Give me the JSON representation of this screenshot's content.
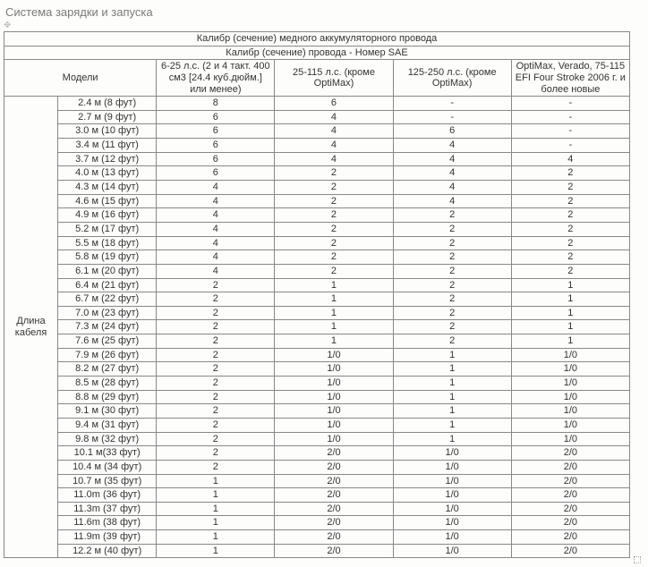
{
  "page_title": "Система зарядки и запуска",
  "table": {
    "header1": "Калибр (сечение) медного аккумуляторного  провода",
    "header2": "Калибр (сечение) провода - Номер SAE",
    "models_label": "Модели",
    "col_headers": [
      "6-25 л.с. (2 и 4 такт. 400 см3 [24.4 куб.дюйм.] или менее)",
      "25-115 л.с. (кроме OptiMax)",
      "125-250 л.с. (кроме OptiMax)",
      "OptiMax, Verado, 75-115 EFI Four Stroke 2006 г. и более новые"
    ],
    "row_group_label": "Длина кабеля",
    "rows": [
      {
        "len": "2.4 м (8 фут)",
        "v": [
          "8",
          "6",
          "-",
          "-"
        ]
      },
      {
        "len": "2.7 м (9 фут)",
        "v": [
          "6",
          "4",
          "-",
          "-"
        ]
      },
      {
        "len": "3.0 м (10 фут)",
        "v": [
          "6",
          "4",
          "6",
          "-"
        ]
      },
      {
        "len": "3.4 м (11 фут)",
        "v": [
          "6",
          "4",
          "4",
          "-"
        ]
      },
      {
        "len": "3.7 м (12 фут)",
        "v": [
          "6",
          "4",
          "4",
          "4"
        ]
      },
      {
        "len": "4.0 м (13 фут)",
        "v": [
          "6",
          "2",
          "4",
          "2"
        ]
      },
      {
        "len": "4.3 м (14 фут)",
        "v": [
          "4",
          "2",
          "4",
          "2"
        ]
      },
      {
        "len": "4.6 м (15 фут)",
        "v": [
          "4",
          "2",
          "4",
          "2"
        ]
      },
      {
        "len": "4.9 м (16 фут)",
        "v": [
          "4",
          "2",
          "2",
          "2"
        ]
      },
      {
        "len": "5.2 м (17 фут)",
        "v": [
          "4",
          "2",
          "2",
          "2"
        ]
      },
      {
        "len": "5.5 м (18 фут)",
        "v": [
          "4",
          "2",
          "2",
          "2"
        ]
      },
      {
        "len": "5.8 м (19 фут)",
        "v": [
          "4",
          "2",
          "2",
          "2"
        ]
      },
      {
        "len": "6.1 м (20 фут)",
        "v": [
          "4",
          "2",
          "2",
          "2"
        ]
      },
      {
        "len": "6.4 м (21 фут)",
        "v": [
          "2",
          "1",
          "2",
          "1"
        ]
      },
      {
        "len": "6.7 м (22 фут)",
        "v": [
          "2",
          "1",
          "2",
          "1"
        ]
      },
      {
        "len": "7.0 м (23 фут)",
        "v": [
          "2",
          "1",
          "2",
          "1"
        ]
      },
      {
        "len": "7.3 м (24 фут)",
        "v": [
          "2",
          "1",
          "2",
          "1"
        ]
      },
      {
        "len": "7.6 м (25 фут)",
        "v": [
          "2",
          "1",
          "2",
          "1"
        ]
      },
      {
        "len": "7.9 м (26 фут)",
        "v": [
          "2",
          "1/0",
          "1",
          "1/0"
        ]
      },
      {
        "len": "8.2 м (27 фут)",
        "v": [
          "2",
          "1/0",
          "1",
          "1/0"
        ]
      },
      {
        "len": "8.5 м (28 фут)",
        "v": [
          "2",
          "1/0",
          "1",
          "1/0"
        ]
      },
      {
        "len": "8.8 м (29 фут)",
        "v": [
          "2",
          "1/0",
          "1",
          "1/0"
        ]
      },
      {
        "len": "9.1 м (30 фут)",
        "v": [
          "2",
          "1/0",
          "1",
          "1/0"
        ]
      },
      {
        "len": "9.4 м (31 фут)",
        "v": [
          "2",
          "1/0",
          "1",
          "1/0"
        ]
      },
      {
        "len": "9.8 м (32 фут)",
        "v": [
          "2",
          "1/0",
          "1",
          "1/0"
        ]
      },
      {
        "len": "10.1 м(33 фут)",
        "v": [
          "2",
          "2/0",
          "1/0",
          "2/0"
        ]
      },
      {
        "len": "10.4 м (34 фут)",
        "v": [
          "2",
          "2/0",
          "1/0",
          "2/0"
        ]
      },
      {
        "len": "10.7 м (35 фут)",
        "v": [
          "1",
          "2/0",
          "1/0",
          "2/0"
        ]
      },
      {
        "len": "11.0m (36 фут)",
        "v": [
          "1",
          "2/0",
          "1/0",
          "2/0"
        ]
      },
      {
        "len": "11.3m (37 фут)",
        "v": [
          "1",
          "2/0",
          "1/0",
          "2/0"
        ]
      },
      {
        "len": "11.6m (38 фут)",
        "v": [
          "1",
          "2/0",
          "1/0",
          "2/0"
        ]
      },
      {
        "len": "11.9m (39 фут)",
        "v": [
          "1",
          "2/0",
          "1/0",
          "2/0"
        ]
      },
      {
        "len": "12.2 м (40 фут)",
        "v": [
          "1",
          "2/0",
          "1/0",
          "2/0"
        ]
      }
    ]
  }
}
